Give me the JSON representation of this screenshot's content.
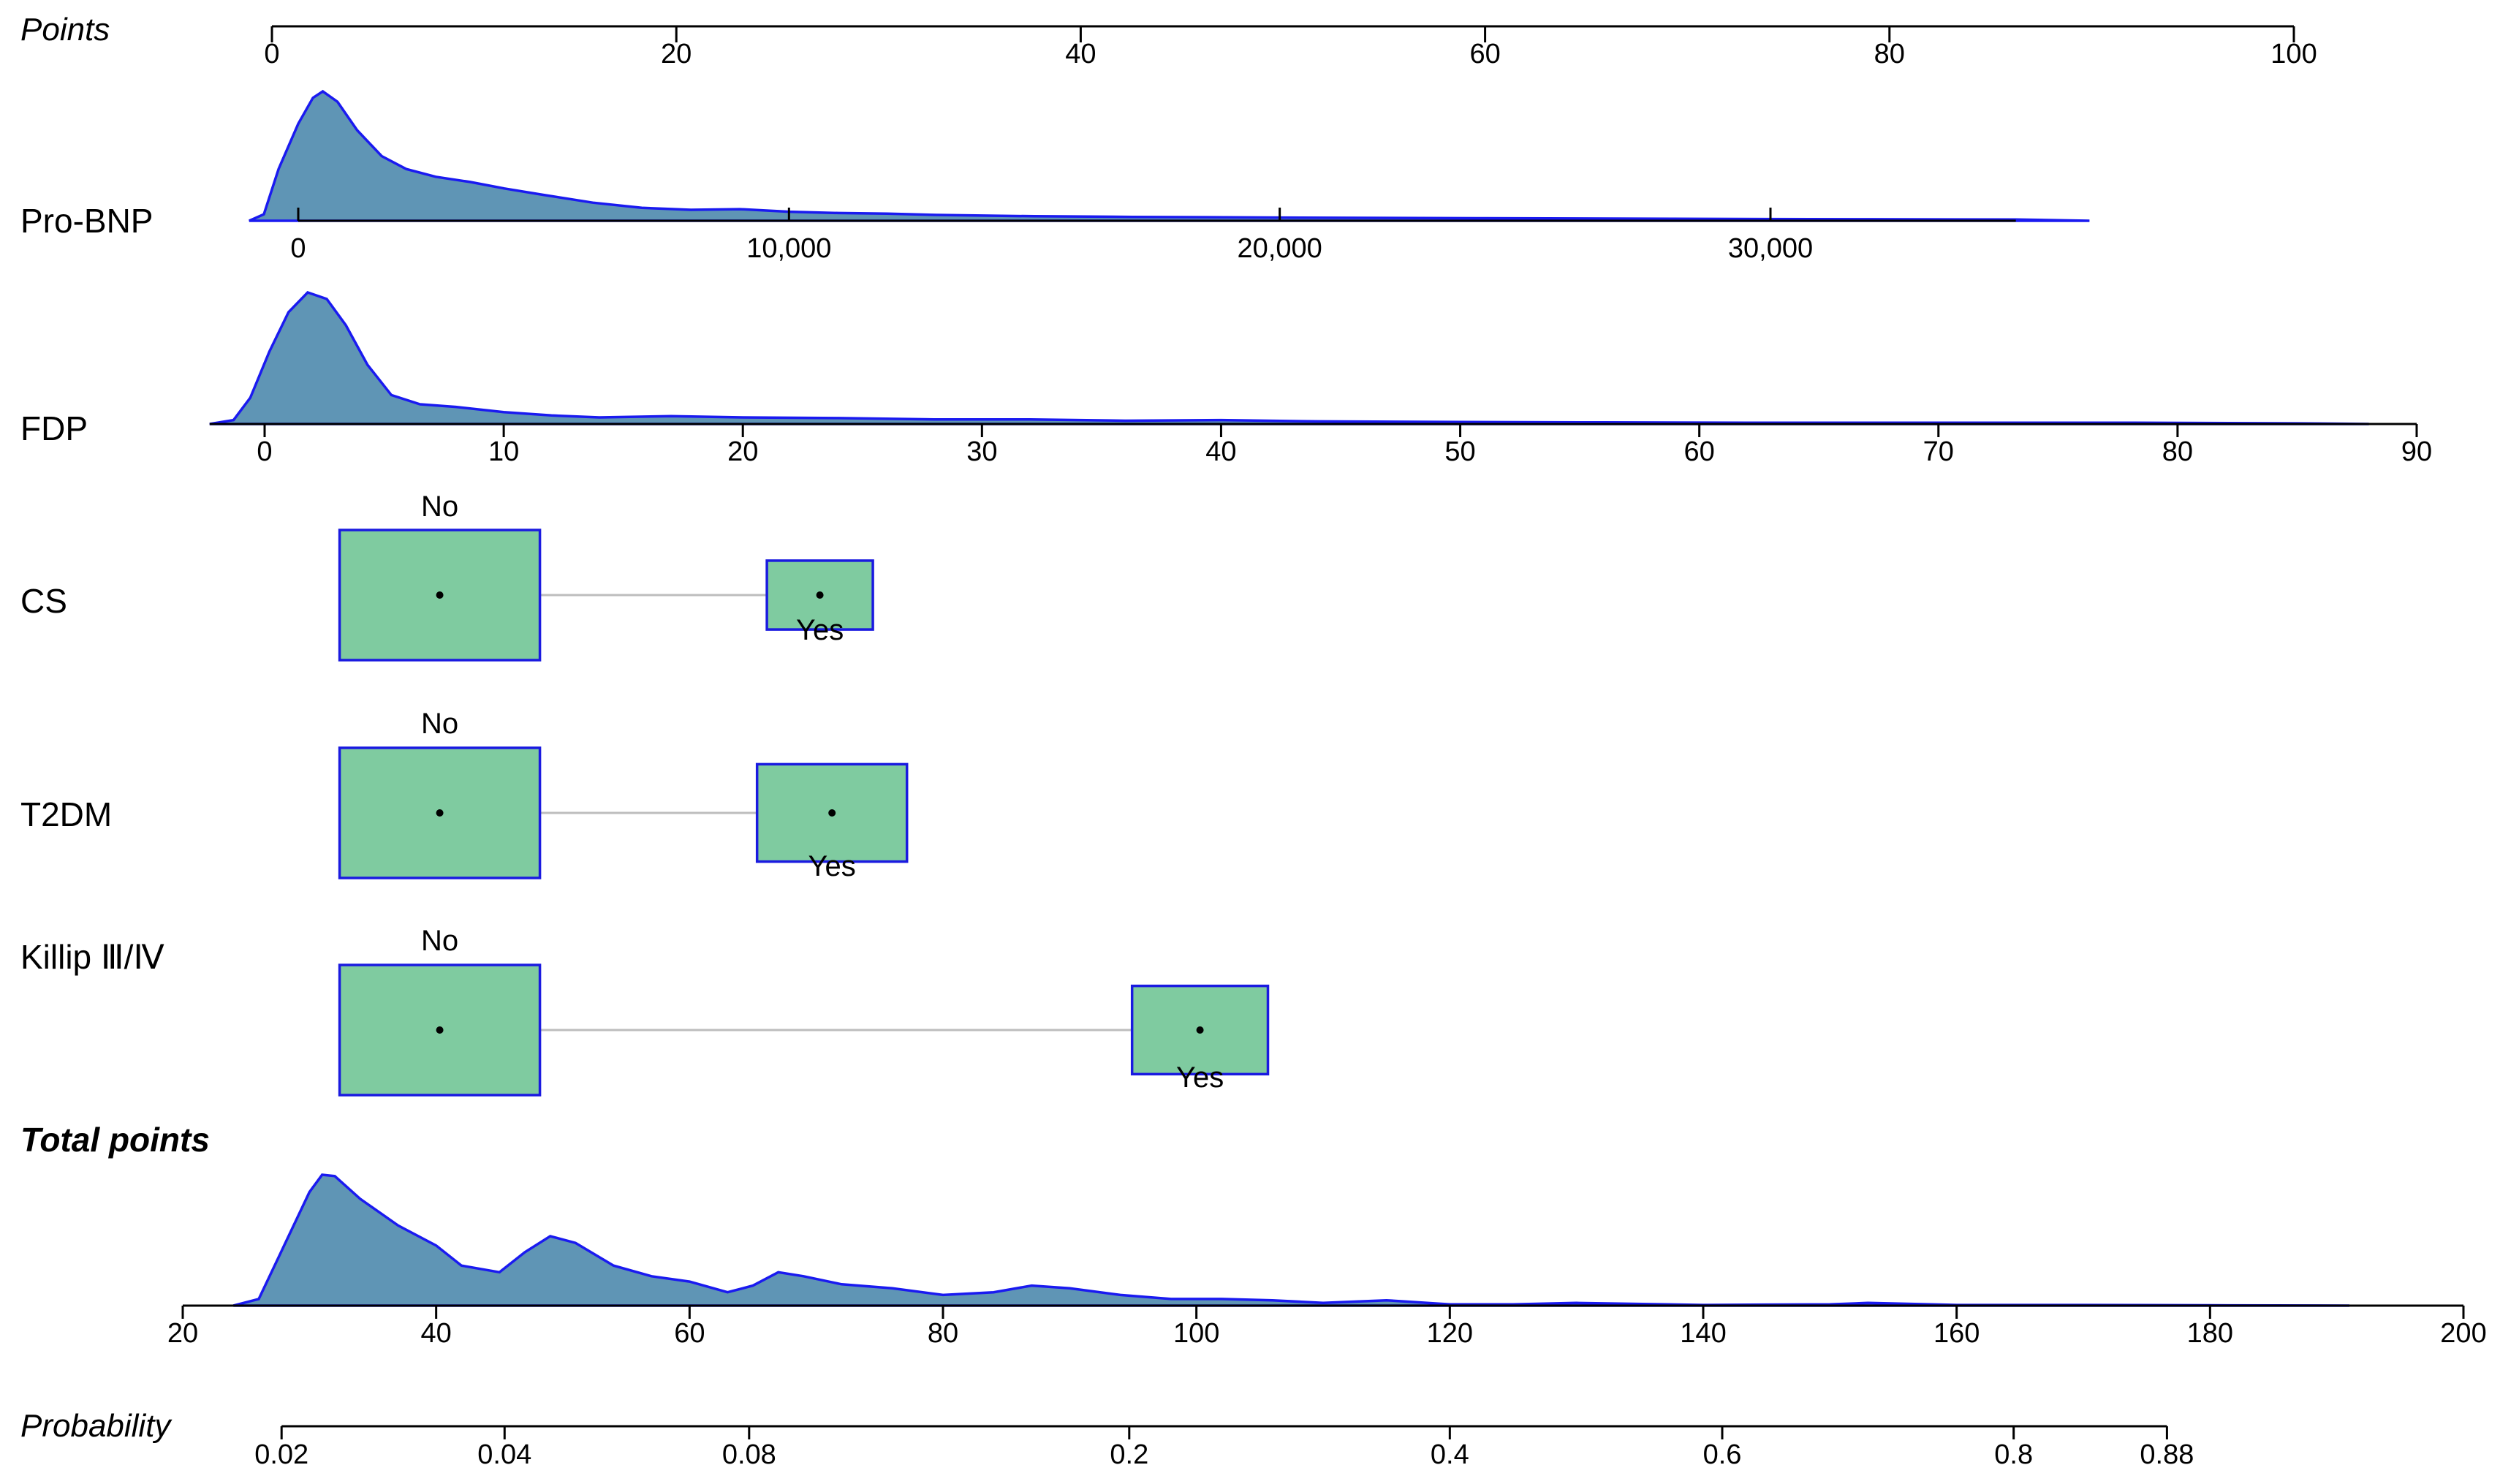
{
  "chart_data": {
    "type": "nomogram",
    "points": {
      "label": "Points",
      "range": [
        0,
        100
      ],
      "ticks": [
        0,
        20,
        40,
        60,
        80,
        100
      ]
    },
    "rows": [
      {
        "id": "probnp",
        "label": "Pro-BNP",
        "kind": "continuous",
        "range": [
          0,
          35000
        ],
        "ticks": [
          0,
          10000,
          20000,
          30000
        ],
        "tick_labels": [
          "0",
          "10,000",
          "20,000",
          "30,000"
        ],
        "density": [
          [
            -1000,
            0
          ],
          [
            -700,
            0.05
          ],
          [
            -400,
            0.4
          ],
          [
            0,
            0.75
          ],
          [
            300,
            0.95
          ],
          [
            500,
            1.0
          ],
          [
            800,
            0.92
          ],
          [
            1200,
            0.7
          ],
          [
            1700,
            0.5
          ],
          [
            2200,
            0.4
          ],
          [
            2800,
            0.34
          ],
          [
            3500,
            0.3
          ],
          [
            4200,
            0.25
          ],
          [
            5000,
            0.2
          ],
          [
            6000,
            0.14
          ],
          [
            7000,
            0.1
          ],
          [
            8000,
            0.085
          ],
          [
            9000,
            0.09
          ],
          [
            10000,
            0.07
          ],
          [
            11000,
            0.06
          ],
          [
            12000,
            0.055
          ],
          [
            13000,
            0.045
          ],
          [
            15000,
            0.035
          ],
          [
            17000,
            0.03
          ],
          [
            20000,
            0.025
          ],
          [
            24000,
            0.02
          ],
          [
            28000,
            0.015
          ],
          [
            32000,
            0.012
          ],
          [
            35000,
            0.01
          ],
          [
            36500,
            0
          ]
        ]
      },
      {
        "id": "fdp",
        "label": "FDP",
        "kind": "continuous",
        "range": [
          0,
          90
        ],
        "ticks": [
          0,
          10,
          20,
          30,
          40,
          50,
          60,
          70,
          80,
          90
        ],
        "tick_labels": [
          "0",
          "10",
          "20",
          "30",
          "40",
          "50",
          "60",
          "70",
          "80",
          "90"
        ],
        "density": [
          [
            -2.3,
            0
          ],
          [
            -1.3,
            0.03
          ],
          [
            -0.6,
            0.2
          ],
          [
            0.2,
            0.55
          ],
          [
            1,
            0.85
          ],
          [
            1.8,
            1.0
          ],
          [
            2.6,
            0.95
          ],
          [
            3.4,
            0.75
          ],
          [
            4.3,
            0.45
          ],
          [
            5.3,
            0.22
          ],
          [
            6.5,
            0.15
          ],
          [
            8,
            0.13
          ],
          [
            10,
            0.09
          ],
          [
            12,
            0.065
          ],
          [
            14,
            0.05
          ],
          [
            17,
            0.06
          ],
          [
            20,
            0.05
          ],
          [
            24,
            0.045
          ],
          [
            28,
            0.035
          ],
          [
            32,
            0.035
          ],
          [
            36,
            0.025
          ],
          [
            40,
            0.03
          ],
          [
            44,
            0.02
          ],
          [
            50,
            0.015
          ],
          [
            56,
            0.012
          ],
          [
            62,
            0.01
          ],
          [
            70,
            0.01
          ],
          [
            78,
            0.01
          ],
          [
            85,
            0.005
          ],
          [
            88,
            0
          ]
        ]
      },
      {
        "id": "cs",
        "label": "CS",
        "kind": "categorical",
        "categories": [
          {
            "name": "No",
            "points": 8.3,
            "weight": 1.0
          },
          {
            "name": "Yes",
            "points": 27.1,
            "weight": 0.28
          }
        ]
      },
      {
        "id": "t2dm",
        "label": "T2DM",
        "kind": "categorical",
        "categories": [
          {
            "name": "No",
            "points": 8.3,
            "weight": 1.0
          },
          {
            "name": "Yes",
            "points": 27.7,
            "weight": 0.56
          }
        ]
      },
      {
        "id": "killip",
        "label": "Killip Ⅲ/Ⅳ",
        "kind": "categorical",
        "categories": [
          {
            "name": "No",
            "points": 8.3,
            "weight": 1.0
          },
          {
            "name": "Yes",
            "points": 45.9,
            "weight": 0.46
          }
        ]
      }
    ],
    "total_points": {
      "label": "Total points",
      "range": [
        20,
        200
      ],
      "ticks": [
        20,
        40,
        60,
        80,
        100,
        120,
        140,
        160,
        180,
        200
      ],
      "tick_labels": [
        "20",
        "40",
        "60",
        "80",
        "100",
        "120",
        "140",
        "160",
        "180",
        "200"
      ],
      "density": [
        [
          24,
          0
        ],
        [
          26,
          0.05
        ],
        [
          28,
          0.45
        ],
        [
          30,
          0.85
        ],
        [
          31,
          0.98
        ],
        [
          32,
          0.97
        ],
        [
          34,
          0.8
        ],
        [
          37,
          0.6
        ],
        [
          40,
          0.45
        ],
        [
          42,
          0.3
        ],
        [
          45,
          0.25
        ],
        [
          47,
          0.4
        ],
        [
          49,
          0.52
        ],
        [
          51,
          0.47
        ],
        [
          54,
          0.3
        ],
        [
          57,
          0.22
        ],
        [
          60,
          0.18
        ],
        [
          63,
          0.1
        ],
        [
          65,
          0.15
        ],
        [
          67,
          0.25
        ],
        [
          69,
          0.22
        ],
        [
          72,
          0.16
        ],
        [
          76,
          0.13
        ],
        [
          80,
          0.08
        ],
        [
          84,
          0.1
        ],
        [
          87,
          0.15
        ],
        [
          90,
          0.13
        ],
        [
          94,
          0.08
        ],
        [
          98,
          0.05
        ],
        [
          102,
          0.05
        ],
        [
          106,
          0.04
        ],
        [
          110,
          0.02
        ],
        [
          115,
          0.04
        ],
        [
          120,
          0.01
        ],
        [
          125,
          0.01
        ],
        [
          130,
          0.02
        ],
        [
          140,
          0.005
        ],
        [
          150,
          0.01
        ],
        [
          153,
          0.02
        ],
        [
          160,
          0.005
        ],
        [
          170,
          0.005
        ],
        [
          180,
          0.003
        ],
        [
          191,
          0
        ]
      ]
    },
    "probability": {
      "label": "Probability",
      "ticks": [
        0.02,
        0.04,
        0.08,
        0.2,
        0.4,
        0.6,
        0.8,
        0.88
      ],
      "tick_labels": [
        "0.02",
        "0.04",
        "0.08",
        "0.2",
        "0.4",
        "0.6",
        "0.8",
        "0.88"
      ],
      "tick_total_points": [
        27.8,
        45.4,
        64.7,
        94.7,
        120.0,
        141.5,
        164.5,
        176.6
      ]
    }
  }
}
